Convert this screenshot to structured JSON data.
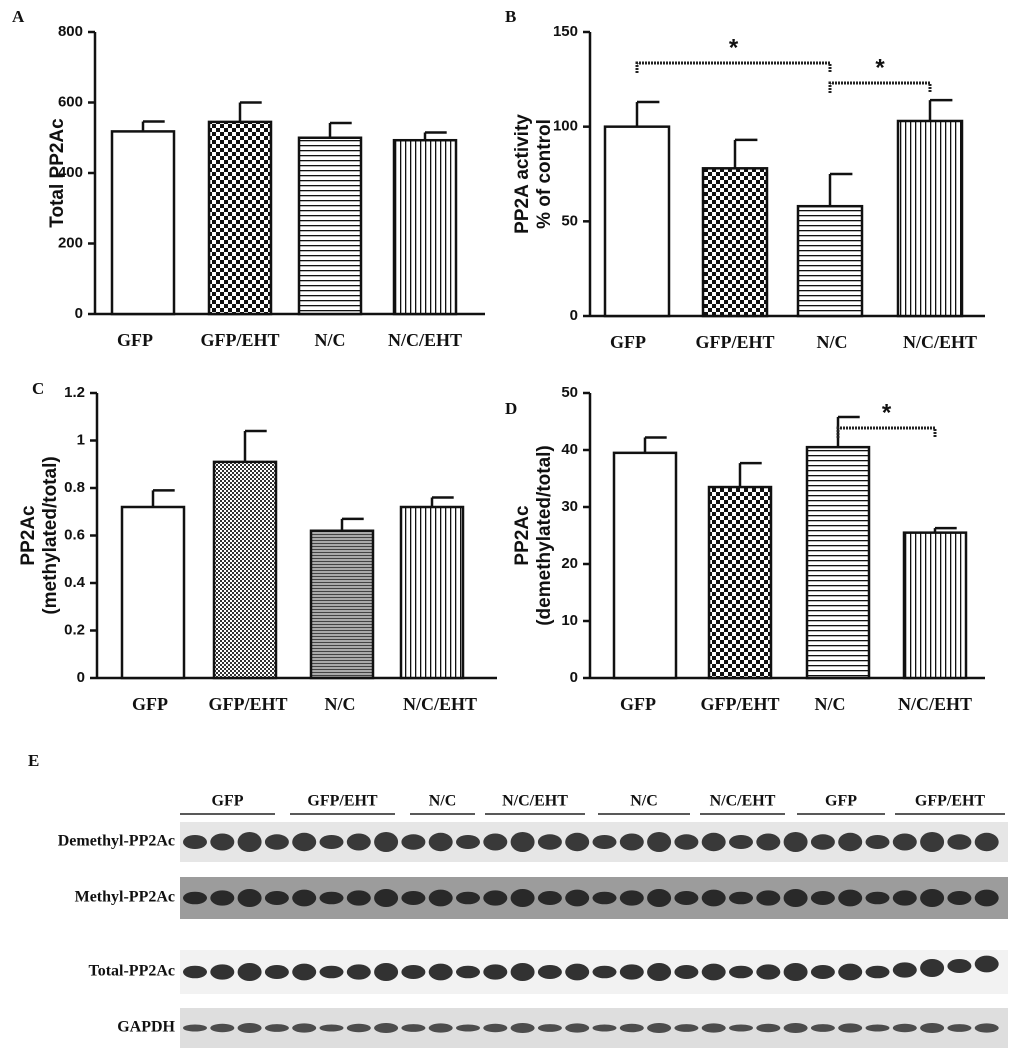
{
  "chart_data": [
    {
      "type": "bar",
      "panel": "A",
      "ylabel": [
        "Total PP2Ac"
      ],
      "categories": [
        "GFP",
        "GFP/EHT",
        "N/C",
        "N/C/EHT"
      ],
      "values": [
        518,
        545,
        500,
        493
      ],
      "errors": [
        28,
        55,
        42,
        22
      ],
      "patterns": [
        "none",
        "checker",
        "hlines",
        "vlines"
      ],
      "ylim": [
        0,
        800
      ],
      "yticks": [
        0,
        200,
        400,
        600,
        800
      ],
      "annotations": []
    },
    {
      "type": "bar",
      "panel": "B",
      "ylabel": [
        "PP2A activity",
        "% of control"
      ],
      "categories": [
        "GFP",
        "GFP/EHT",
        "N/C",
        "N/C/EHT"
      ],
      "values": [
        100,
        78,
        58,
        103
      ],
      "errors": [
        13,
        15,
        17,
        11
      ],
      "patterns": [
        "none",
        "checker",
        "hlines",
        "vlines"
      ],
      "ylim": [
        0,
        150
      ],
      "yticks": [
        0,
        50,
        100,
        150
      ],
      "annotations": [
        "*",
        "*"
      ]
    },
    {
      "type": "bar",
      "panel": "C",
      "ylabel": [
        "PP2Ac",
        "(methylated/total)"
      ],
      "categories": [
        "GFP",
        "GFP/EHT",
        "N/C",
        "N/C/EHT"
      ],
      "values": [
        0.72,
        0.91,
        0.62,
        0.72
      ],
      "errors": [
        0.07,
        0.13,
        0.05,
        0.04
      ],
      "patterns": [
        "none",
        "fine-checker",
        "grey-hlines",
        "vlines"
      ],
      "ylim": [
        0,
        1.2
      ],
      "yticks": [
        0,
        0.2,
        0.4,
        0.6,
        0.8,
        1,
        1.2
      ],
      "annotations": []
    },
    {
      "type": "bar",
      "panel": "D",
      "ylabel": [
        "PP2Ac",
        "(demethylated/total)"
      ],
      "categories": [
        "GFP",
        "GFP/EHT",
        "N/C",
        "N/C/EHT"
      ],
      "values": [
        39.5,
        33.5,
        40.5,
        25.5
      ],
      "errors": [
        2.7,
        4.2,
        5.3,
        0.8
      ],
      "patterns": [
        "none",
        "checker",
        "hlines",
        "vlines"
      ],
      "ylim": [
        0,
        50
      ],
      "yticks": [
        0,
        10,
        20,
        30,
        40,
        50
      ],
      "annotations": [
        "*"
      ]
    }
  ],
  "blot": {
    "panel": "E",
    "groups": [
      "GFP",
      "GFP/EHT",
      "N/C",
      "N/C/EHT",
      "N/C",
      "N/C/EHT",
      "GFP",
      "GFP/EHT"
    ],
    "rows": [
      "Demethyl-PP2Ac",
      "Methyl-PP2Ac",
      "Total-PP2Ac",
      "GAPDH"
    ]
  }
}
